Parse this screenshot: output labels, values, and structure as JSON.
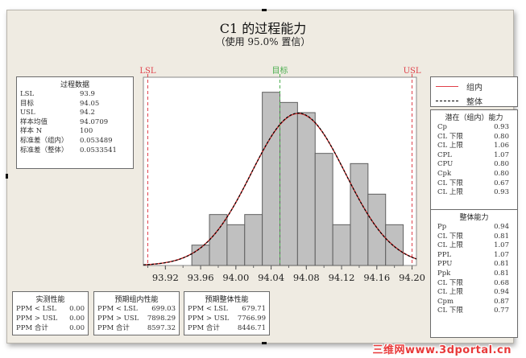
{
  "title": "C1 的过程能力",
  "subtitle": "（使用 95.0% 置信）",
  "spec_labels": {
    "lsl": "LSL",
    "target": "目标",
    "usl": "USL"
  },
  "colors": {
    "lsl": "#e0404a",
    "target": "#4caf50",
    "usl": "#e0404a",
    "bars": "#c0c0c0",
    "within_curve": "#cc2a2a",
    "overall_curve": "#000000"
  },
  "process_data": {
    "header": "过程数据",
    "rows": [
      {
        "label": "LSL",
        "value": "93.9"
      },
      {
        "label": "目标",
        "value": "94.05"
      },
      {
        "label": "USL",
        "value": "94.2"
      },
      {
        "label": "样本均值",
        "value": "94.0709"
      },
      {
        "label": "样本 N",
        "value": "100"
      },
      {
        "label": "标准差（组内）",
        "value": "0.053489"
      },
      {
        "label": "标准差（整体）",
        "value": "0.0533541"
      }
    ]
  },
  "legend": {
    "items": [
      {
        "label": "组内",
        "style": "solid-red"
      },
      {
        "label": "整体",
        "style": "dashed-black"
      }
    ]
  },
  "within_capability": {
    "header": "潜在（组内）能力",
    "rows": [
      {
        "label": "Cp",
        "value": "0.93"
      },
      {
        "label": "CL 下限",
        "value": "0.80"
      },
      {
        "label": "CL 上限",
        "value": "1.06"
      },
      {
        "label": "CPL",
        "value": "1.07"
      },
      {
        "label": "CPU",
        "value": "0.80"
      },
      {
        "label": "Cpk",
        "value": "0.80"
      },
      {
        "label": "CL 下限",
        "value": "0.67"
      },
      {
        "label": "CL 上限",
        "value": "0.93"
      }
    ]
  },
  "overall_capability": {
    "header": "整体能力",
    "rows": [
      {
        "label": "Pp",
        "value": "0.94"
      },
      {
        "label": "CL 下限",
        "value": "0.81"
      },
      {
        "label": "CL 上限",
        "value": "1.07"
      },
      {
        "label": "PPL",
        "value": "1.07"
      },
      {
        "label": "PPU",
        "value": "0.81"
      },
      {
        "label": "Ppk",
        "value": "0.81"
      },
      {
        "label": "CL 下限",
        "value": "0.68"
      },
      {
        "label": "CL 上限",
        "value": "0.94"
      },
      {
        "label": "Cpm",
        "value": "0.87"
      },
      {
        "label": "CL 下限",
        "value": "0.77"
      }
    ]
  },
  "observed_performance": {
    "header": "实测性能",
    "rows": [
      {
        "label": "PPM < LSL",
        "value": "0.00"
      },
      {
        "label": "PPM > USL",
        "value": "0.00"
      },
      {
        "label": "PPM 合计",
        "value": "0.00"
      }
    ]
  },
  "expected_within_performance": {
    "header": "预期组内性能",
    "rows": [
      {
        "label": "PPM < LSL",
        "value": "699.03"
      },
      {
        "label": "PPM > USL",
        "value": "7898.29"
      },
      {
        "label": "PPM 合计",
        "value": "8597.32"
      }
    ]
  },
  "expected_overall_performance": {
    "header": "预期整体性能",
    "rows": [
      {
        "label": "PPM < LSL",
        "value": "679.71"
      },
      {
        "label": "PPM > USL",
        "value": "7766.99"
      },
      {
        "label": "PPM 合计",
        "value": "8446.71"
      }
    ]
  },
  "watermark": "三维网www.3dportal.cn",
  "chart_data": {
    "type": "bar",
    "title": "C1 的过程能力",
    "subtitle": "（使用 95.0% 置信）",
    "xlabel": "",
    "ylabel": "",
    "bin_width": 0.02,
    "bin_edges": [
      93.95,
      93.97,
      93.99,
      94.01,
      94.03,
      94.05,
      94.07,
      94.09,
      94.11,
      94.13,
      94.15,
      94.17,
      94.19
    ],
    "values": [
      2,
      5,
      4,
      5,
      17,
      16,
      15,
      11,
      4,
      10,
      7,
      4
    ],
    "xticks": [
      "93.92",
      "93.96",
      "94.00",
      "94.04",
      "94.08",
      "94.12",
      "94.16",
      "94.20"
    ],
    "xlim": [
      93.895,
      94.205
    ],
    "ylim": [
      0,
      18
    ],
    "grid": false,
    "reference_lines": [
      {
        "label": "LSL",
        "x": 93.9,
        "color": "#e0404a"
      },
      {
        "label": "目标",
        "x": 94.05,
        "color": "#4caf50"
      },
      {
        "label": "USL",
        "x": 94.2,
        "color": "#e0404a"
      }
    ],
    "curves": [
      {
        "name": "组内",
        "type": "normal",
        "mean": 94.0709,
        "sd": 0.053489,
        "style": "solid red"
      },
      {
        "name": "整体",
        "type": "normal",
        "mean": 94.0709,
        "sd": 0.0533541,
        "style": "dashed black"
      }
    ],
    "legend_position": "right"
  }
}
